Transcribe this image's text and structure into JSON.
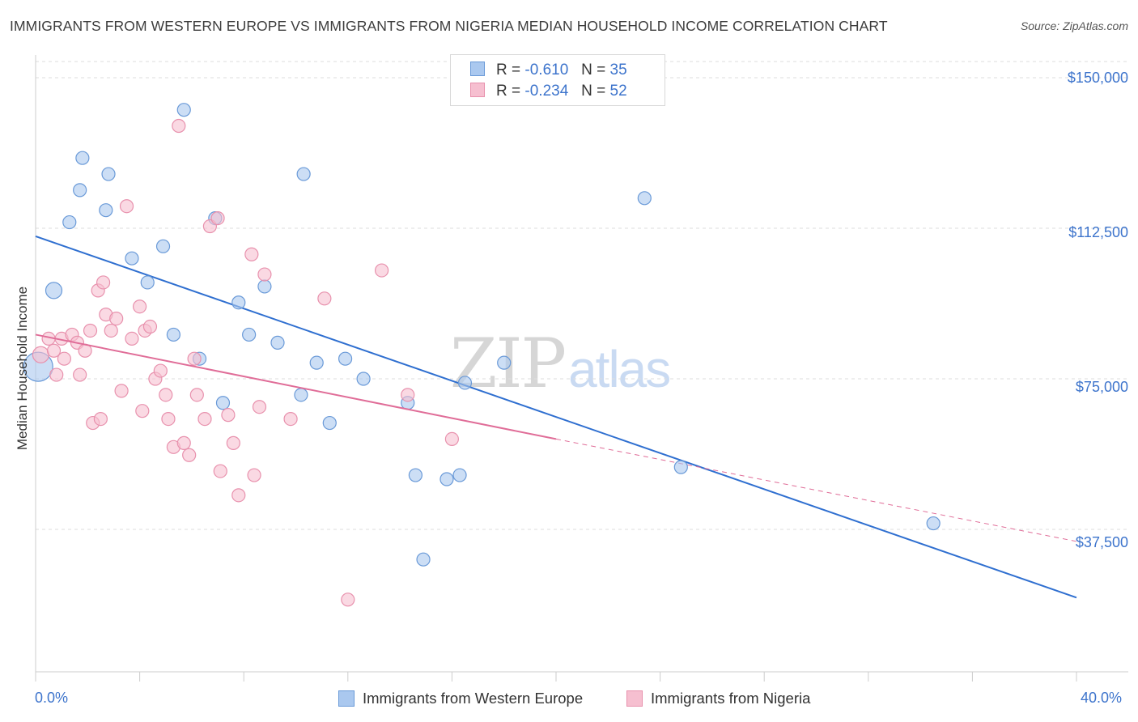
{
  "title": "IMMIGRANTS FROM WESTERN EUROPE VS IMMIGRANTS FROM NIGERIA MEDIAN HOUSEHOLD INCOME CORRELATION CHART",
  "source": "Source: ZipAtlas.com",
  "watermark": {
    "zip": "ZIP",
    "atlas": "atlas"
  },
  "legend": {
    "rows": [
      {
        "r_label": "R =",
        "r_value": "-0.610",
        "n_label": "N =",
        "n_value": "35"
      },
      {
        "r_label": "R =",
        "r_value": "-0.234",
        "n_label": "N =",
        "n_value": "52"
      }
    ]
  },
  "colors": {
    "blue_fill": "#aac8ef",
    "blue_stroke": "#6a9ad8",
    "blue_line": "#2f6fd0",
    "pink_fill": "#f6bfd0",
    "pink_stroke": "#e891ad",
    "pink_line": "#e06d98",
    "grid": "#dddddd",
    "tick_text": "#3d74cc"
  },
  "chart_data": {
    "type": "scatter",
    "title": "IMMIGRANTS FROM WESTERN EUROPE VS IMMIGRANTS FROM NIGERIA MEDIAN HOUSEHOLD INCOME CORRELATION CHART",
    "xlabel": "",
    "ylabel": "Median Household Income",
    "xlim": [
      0,
      40
    ],
    "ylim": [
      0,
      155000
    ],
    "x_tick_labels": [
      "0.0%",
      "40.0%"
    ],
    "y_ticks": [
      37500,
      75000,
      112500,
      150000
    ],
    "y_tick_labels": [
      "$37,500",
      "$75,000",
      "$112,500",
      "$150,000"
    ],
    "grid": true,
    "legend_position": "top-center",
    "series": [
      {
        "name": "Immigrants from Western Europe",
        "color": "#aac8ef",
        "points": [
          [
            0.1,
            78000,
            "large"
          ],
          [
            0.7,
            97000,
            "big"
          ],
          [
            1.3,
            114000
          ],
          [
            1.8,
            130000
          ],
          [
            1.7,
            122000
          ],
          [
            2.8,
            126000
          ],
          [
            2.7,
            117000
          ],
          [
            3.7,
            105000
          ],
          [
            4.3,
            99000
          ],
          [
            4.9,
            108000
          ],
          [
            5.7,
            142000
          ],
          [
            5.3,
            86000
          ],
          [
            6.3,
            80000
          ],
          [
            6.9,
            115000
          ],
          [
            7.2,
            69000
          ],
          [
            7.8,
            94000
          ],
          [
            8.2,
            86000
          ],
          [
            8.8,
            98000
          ],
          [
            9.3,
            84000
          ],
          [
            10.3,
            126000
          ],
          [
            10.2,
            71000
          ],
          [
            10.8,
            79000
          ],
          [
            11.3,
            64000
          ],
          [
            11.9,
            80000
          ],
          [
            12.6,
            75000
          ],
          [
            14.3,
            69000
          ],
          [
            14.6,
            51000
          ],
          [
            14.9,
            30000
          ],
          [
            15.8,
            50000
          ],
          [
            16.3,
            51000
          ],
          [
            16.5,
            74000
          ],
          [
            18.0,
            79000
          ],
          [
            23.4,
            120000
          ],
          [
            24.8,
            53000
          ],
          [
            34.5,
            39000
          ]
        ]
      },
      {
        "name": "Immigrants from Nigeria",
        "color": "#f6bfd0",
        "points": [
          [
            0.2,
            81000,
            "big"
          ],
          [
            0.5,
            85000
          ],
          [
            0.7,
            82000
          ],
          [
            0.8,
            76000
          ],
          [
            1.0,
            85000
          ],
          [
            1.1,
            80000
          ],
          [
            1.4,
            86000
          ],
          [
            1.6,
            84000
          ],
          [
            1.7,
            76000
          ],
          [
            1.9,
            82000
          ],
          [
            2.1,
            87000
          ],
          [
            2.2,
            64000
          ],
          [
            2.4,
            97000
          ],
          [
            2.5,
            65000
          ],
          [
            2.6,
            99000
          ],
          [
            2.7,
            91000
          ],
          [
            2.9,
            87000
          ],
          [
            3.1,
            90000
          ],
          [
            3.3,
            72000
          ],
          [
            3.5,
            118000
          ],
          [
            3.7,
            85000
          ],
          [
            4.0,
            93000
          ],
          [
            4.1,
            67000
          ],
          [
            4.2,
            87000
          ],
          [
            4.4,
            88000
          ],
          [
            4.6,
            75000
          ],
          [
            4.8,
            77000
          ],
          [
            5.0,
            71000
          ],
          [
            5.1,
            65000
          ],
          [
            5.3,
            58000
          ],
          [
            5.5,
            138000
          ],
          [
            5.7,
            59000
          ],
          [
            5.9,
            56000
          ],
          [
            6.1,
            80000
          ],
          [
            6.2,
            71000
          ],
          [
            6.5,
            65000
          ],
          [
            6.7,
            113000
          ],
          [
            7.0,
            115000
          ],
          [
            7.1,
            52000
          ],
          [
            7.4,
            66000
          ],
          [
            7.6,
            59000
          ],
          [
            7.8,
            46000
          ],
          [
            8.3,
            106000
          ],
          [
            8.4,
            51000
          ],
          [
            8.6,
            68000
          ],
          [
            8.8,
            101000
          ],
          [
            9.8,
            65000
          ],
          [
            11.1,
            95000
          ],
          [
            12.0,
            20000
          ],
          [
            13.3,
            102000
          ],
          [
            14.3,
            71000
          ],
          [
            16.0,
            60000
          ]
        ]
      }
    ],
    "trend_lines": [
      {
        "series": "Immigrants from Western Europe",
        "x": [
          0,
          40
        ],
        "y": [
          110500,
          20500
        ]
      },
      {
        "series": "Immigrants from Nigeria",
        "x": [
          0,
          20
        ],
        "y": [
          86000,
          60000
        ],
        "dashed_extension_to": [
          40,
          34500
        ]
      }
    ]
  },
  "bottom_legend": [
    "Immigrants from Western Europe",
    "Immigrants from Nigeria"
  ]
}
